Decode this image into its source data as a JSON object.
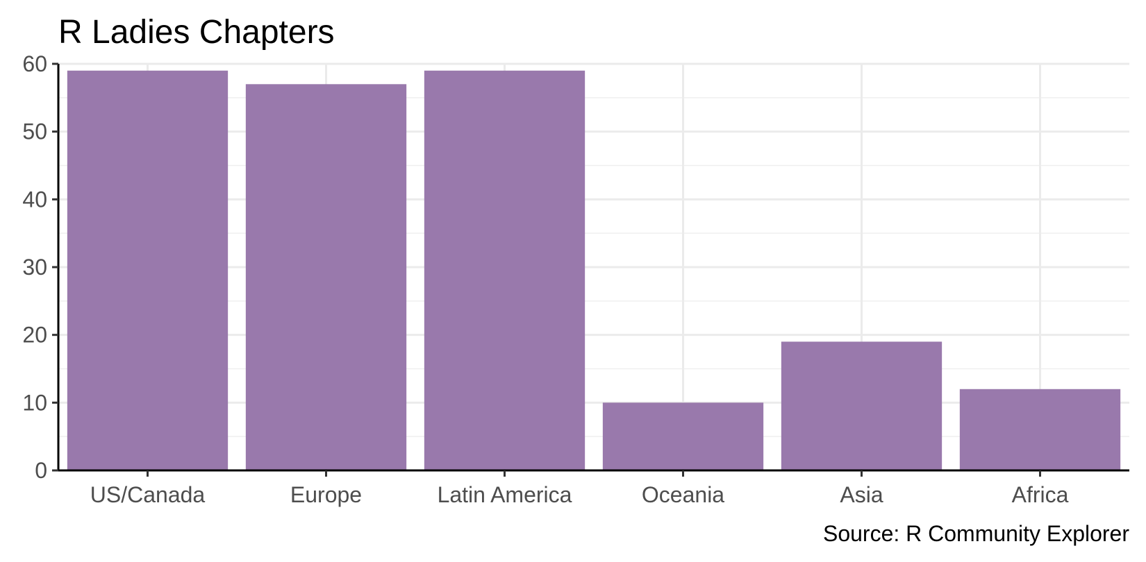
{
  "chart_data": {
    "type": "bar",
    "title": "R Ladies Chapters",
    "caption": "Source: R Community Explorer",
    "xlabel": "",
    "ylabel": "",
    "categories": [
      "US/Canada",
      "Europe",
      "Latin America",
      "Oceania",
      "Asia",
      "Africa"
    ],
    "values": [
      59,
      57,
      59,
      10,
      19,
      12
    ],
    "ylim": [
      0,
      60
    ],
    "yticks": [
      0,
      10,
      20,
      30,
      40,
      50,
      60
    ],
    "grid": true,
    "legend": "none",
    "bar_color": "#9979ac"
  }
}
